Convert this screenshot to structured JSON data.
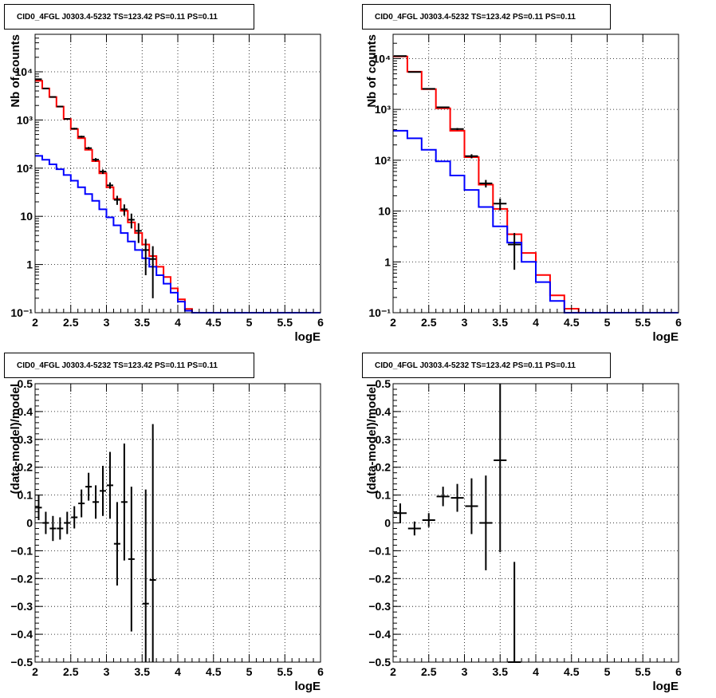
{
  "chart_data": [
    {
      "type": "line",
      "title": "CID0_4FGL J0303.4-5232 TS=123.42 PS=0.11 PS=0.11",
      "xlabel": "logE",
      "ylabel": "Nb of counts",
      "xlim": [
        2,
        6
      ],
      "ylim": [
        0.1,
        60000
      ],
      "yscale": "log",
      "grid": true,
      "xticks": [
        "2",
        "2.5",
        "3",
        "3.5",
        "4",
        "4.5",
        "5",
        "5.5",
        "6"
      ],
      "yticks": [
        {
          "value": 0.1,
          "label": "10⁻¹"
        },
        {
          "value": 1,
          "label": "1"
        },
        {
          "value": 10,
          "label": "10"
        },
        {
          "value": 100,
          "label": "10²"
        },
        {
          "value": 1000,
          "label": "10³"
        },
        {
          "value": 10000,
          "label": "10⁴"
        }
      ],
      "bin_edges": [
        2.0,
        2.1,
        2.2,
        2.3,
        2.4,
        2.5,
        2.6,
        2.7,
        2.8,
        2.9,
        3.0,
        3.1,
        3.2,
        3.3,
        3.4,
        3.5,
        3.6,
        3.7,
        3.8,
        3.9,
        4.0,
        4.1,
        4.2,
        4.3,
        4.4,
        4.5,
        4.6,
        4.7,
        4.8,
        4.9,
        5.0,
        5.1,
        5.2,
        5.3,
        5.4,
        5.5,
        5.6,
        5.7,
        5.8,
        5.9,
        6.0
      ],
      "series": [
        {
          "color": "#ff0000",
          "kind": "step",
          "values": [
            6500,
            4500,
            3000,
            1900,
            1050,
            650,
            420,
            240,
            140,
            78,
            40,
            23,
            13,
            7.5,
            4.5,
            2.6,
            1.5,
            0.9,
            0.55,
            0.32,
            0.19,
            0.12,
            0.1,
            0.1,
            0.1,
            0.1,
            0.1,
            0.1,
            0.1,
            0.1,
            0.1,
            0.1,
            0.1,
            0.1,
            0.1,
            0.1,
            0.1,
            0.1,
            0.1,
            0.1
          ]
        },
        {
          "color": "#0000ff",
          "kind": "step",
          "values": [
            180,
            150,
            120,
            95,
            72,
            55,
            40,
            29,
            21,
            14,
            9.5,
            6.5,
            4.5,
            3.0,
            2.0,
            1.35,
            0.9,
            0.6,
            0.4,
            0.26,
            0.17,
            0.11,
            0.1,
            0.1,
            0.1,
            0.1,
            0.1,
            0.1,
            0.1,
            0.1,
            0.1,
            0.1,
            0.1,
            0.1,
            0.1,
            0.1,
            0.1,
            0.1,
            0.1,
            0.1
          ]
        },
        {
          "color": "#000000",
          "kind": "points",
          "name": "",
          "x": [
            2.05,
            2.15,
            2.25,
            2.35,
            2.45,
            2.55,
            2.65,
            2.75,
            2.85,
            2.95,
            3.05,
            3.15,
            3.25,
            3.35,
            3.45,
            3.55,
            3.65
          ],
          "y": [
            7000,
            4500,
            3000,
            1900,
            1050,
            660,
            450,
            260,
            150,
            85,
            44,
            22,
            14,
            8.5,
            5.0,
            2.0,
            1.3
          ],
          "err": [
            84,
            67,
            55,
            44,
            32,
            26,
            21,
            16,
            12,
            9,
            6.6,
            4.7,
            3.7,
            2.9,
            2.2,
            1.4,
            1.1
          ]
        }
      ]
    },
    {
      "type": "line",
      "title": "CID0_4FGL J0303.4-5232 TS=123.42 PS=0.11 PS=0.11",
      "xlabel": "logE",
      "ylabel": "Nb of counts",
      "xlim": [
        2,
        6
      ],
      "ylim": [
        0.1,
        30000
      ],
      "yscale": "log",
      "grid": true,
      "xticks": [
        "2",
        "2.5",
        "3",
        "3.5",
        "4",
        "4.5",
        "5",
        "5.5",
        "6"
      ],
      "yticks": [
        {
          "value": 0.1,
          "label": "10⁻¹"
        },
        {
          "value": 1,
          "label": "1"
        },
        {
          "value": 10,
          "label": "10"
        },
        {
          "value": 100,
          "label": "10²"
        },
        {
          "value": 1000,
          "label": "10³"
        },
        {
          "value": 10000,
          "label": "10⁴"
        }
      ],
      "bin_edges": [
        2.0,
        2.2,
        2.4,
        2.6,
        2.8,
        3.0,
        3.2,
        3.4,
        3.6,
        3.8,
        4.0,
        4.2,
        4.4,
        4.6,
        4.8,
        5.0,
        5.2,
        5.4,
        5.6,
        5.8,
        6.0
      ],
      "series": [
        {
          "color": "#ff0000",
          "kind": "step",
          "values": [
            11000,
            5500,
            2500,
            1050,
            380,
            115,
            33,
            11,
            3.5,
            1.5,
            0.55,
            0.22,
            0.12,
            0.1,
            0.1,
            0.1,
            0.1,
            0.1,
            0.1,
            0.1
          ]
        },
        {
          "color": "#0000ff",
          "kind": "step",
          "values": [
            380,
            270,
            160,
            95,
            50,
            26,
            12,
            5.0,
            2.4,
            1.0,
            0.4,
            0.17,
            0.1,
            0.1,
            0.1,
            0.1,
            0.1,
            0.1,
            0.1,
            0.1
          ]
        },
        {
          "color": "#000000",
          "kind": "points",
          "name": "",
          "x": [
            2.1,
            2.3,
            2.5,
            2.7,
            2.9,
            3.1,
            3.3,
            3.5,
            3.7
          ],
          "y": [
            11200,
            5450,
            2530,
            1100,
            410,
            120,
            35,
            14,
            2.2
          ],
          "err": [
            106,
            74,
            50,
            33,
            20,
            11,
            5.9,
            3.7,
            1.5
          ]
        }
      ]
    },
    {
      "type": "scatter",
      "title": "CID0_4FGL J0303.4-5232 TS=123.42 PS=0.11 PS=0.11",
      "xlabel": "logE",
      "ylabel": "(data-model)/model",
      "xlim": [
        2,
        6
      ],
      "ylim": [
        -0.5,
        0.5
      ],
      "grid": true,
      "xticks": [
        "2",
        "2.5",
        "3",
        "3.5",
        "4",
        "4.5",
        "5",
        "5.5",
        "6"
      ],
      "yticks": [
        {
          "value": -0.5,
          "label": "−0.5"
        },
        {
          "value": -0.4,
          "label": "−0.4"
        },
        {
          "value": -0.3,
          "label": "−0.3"
        },
        {
          "value": -0.2,
          "label": "−0.2"
        },
        {
          "value": -0.1,
          "label": "−0.1"
        },
        {
          "value": 0,
          "label": "0"
        },
        {
          "value": 0.1,
          "label": "0.1"
        },
        {
          "value": 0.2,
          "label": "0.2"
        },
        {
          "value": 0.3,
          "label": "0.3"
        },
        {
          "value": 0.4,
          "label": "0.4"
        },
        {
          "value": 0.5,
          "label": "0.5"
        }
      ],
      "series": [
        {
          "color": "#000000",
          "kind": "points",
          "name": "",
          "x": [
            2.05,
            2.15,
            2.25,
            2.35,
            2.45,
            2.55,
            2.65,
            2.75,
            2.85,
            2.95,
            3.05,
            3.15,
            3.25,
            3.35,
            3.55,
            3.65
          ],
          "y": [
            0.055,
            0.0,
            -0.02,
            -0.02,
            0.0,
            0.02,
            0.07,
            0.13,
            0.075,
            0.115,
            0.135,
            -0.075,
            0.075,
            -0.13,
            -0.29,
            -0.205
          ],
          "err": [
            0.045,
            0.04,
            0.045,
            0.04,
            0.04,
            0.04,
            0.05,
            0.05,
            0.06,
            0.09,
            0.12,
            0.15,
            0.21,
            0.26,
            0.41,
            0.56
          ]
        }
      ]
    },
    {
      "type": "scatter",
      "title": "CID0_4FGL J0303.4-5232 TS=123.42 PS=0.11 PS=0.11",
      "xlabel": "logE",
      "ylabel": "(data-model)/model",
      "xlim": [
        2,
        6
      ],
      "ylim": [
        -0.5,
        0.5
      ],
      "grid": true,
      "xticks": [
        "2",
        "2.5",
        "3",
        "3.5",
        "4",
        "4.5",
        "5",
        "5.5",
        "6"
      ],
      "yticks": [
        {
          "value": -0.5,
          "label": "−0.5"
        },
        {
          "value": -0.4,
          "label": "−0.4"
        },
        {
          "value": -0.3,
          "label": "−0.3"
        },
        {
          "value": -0.2,
          "label": "−0.2"
        },
        {
          "value": -0.1,
          "label": "−0.1"
        },
        {
          "value": 0,
          "label": "0"
        },
        {
          "value": 0.1,
          "label": "0.1"
        },
        {
          "value": 0.2,
          "label": "0.2"
        },
        {
          "value": 0.3,
          "label": "0.3"
        },
        {
          "value": 0.4,
          "label": "0.4"
        },
        {
          "value": 0.5,
          "label": "0.5"
        }
      ],
      "series": [
        {
          "color": "#000000",
          "kind": "points",
          "name": "",
          "x": [
            2.1,
            2.3,
            2.5,
            2.7,
            2.9,
            3.1,
            3.3,
            3.5,
            3.7
          ],
          "y": [
            0.035,
            -0.02,
            0.01,
            0.095,
            0.09,
            0.06,
            0.0,
            0.225,
            -0.5
          ],
          "err": [
            0.035,
            0.025,
            0.025,
            0.035,
            0.05,
            0.1,
            0.17,
            0.33,
            0.36
          ]
        }
      ]
    }
  ]
}
